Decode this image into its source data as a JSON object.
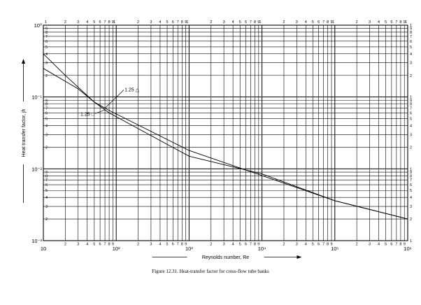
{
  "chart_data": {
    "type": "line",
    "xscale": "log",
    "yscale": "log",
    "xlim": [
      10,
      1000000
    ],
    "ylim": [
      0.001,
      1
    ],
    "grid": true,
    "xlabel": "Reynolds number, Re",
    "ylabel": "Heat transfer factor, jh",
    "x_major_ticks": [
      "10",
      "10²",
      "10³",
      "10⁴",
      "10⁵",
      "10⁶"
    ],
    "y_major_ticks": [
      "10⁻³",
      "10⁻²",
      "10⁻¹",
      "10⁰"
    ],
    "minor_tick_labels": [
      "1",
      "2",
      "3",
      "4",
      "5",
      "6",
      "7",
      "8",
      "9",
      "1"
    ],
    "annotations": [
      {
        "text": "1.25 △",
        "x": 130,
        "y": 0.12
      },
      {
        "text": "1.25 □",
        "x": 50,
        "y": 0.055
      }
    ],
    "series": [
      {
        "marker": "triangle",
        "x": [
          10,
          20,
          50,
          80,
          1000,
          100000,
          1000000
        ],
        "y": [
          0.4,
          0.2,
          0.085,
          0.065,
          0.018,
          0.0036,
          0.002
        ]
      },
      {
        "marker": "square",
        "x": [
          10,
          30,
          50,
          80,
          1000,
          10000,
          100000,
          1000000
        ],
        "y": [
          0.25,
          0.13,
          0.085,
          0.06,
          0.015,
          0.0085,
          0.0036,
          0.002
        ]
      }
    ]
  },
  "caption": "Figure 12.31.   Heat-transfer factor for cross-flow tube banks"
}
